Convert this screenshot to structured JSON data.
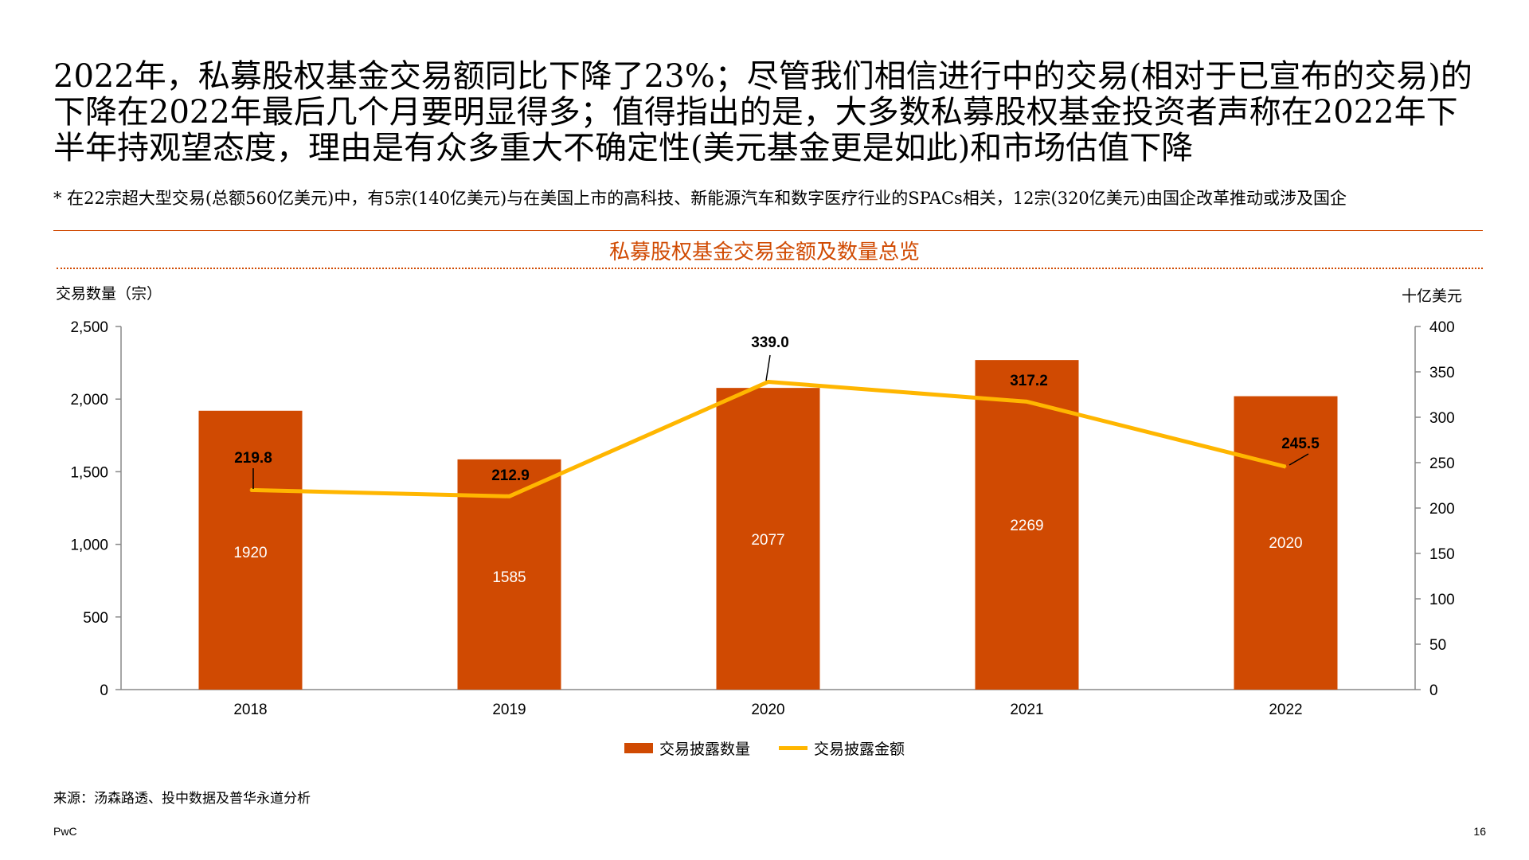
{
  "headline": "2022年，私募股权基金交易额同比下降了23%；尽管我们相信进行中的交易(相对于已宣布的交易)的下降在2022年最后几个月要明显得多；值得指出的是，大多数私募股权基金投资者声称在2022年下半年持观望态度，理由是有众多重大不确定性(美元基金更是如此)和市场估值下降",
  "footnote": "* 在22宗超大型交易(总额560亿美元)中，有5宗(140亿美元)与在美国上市的高科技、新能源汽车和数字医疗行业的SPACs相关，12宗(320亿美元)由国企改革推动或涉及国企",
  "source": "来源：汤森路透、投中数据及普华永道分析",
  "brand": "PwC",
  "page_number": "16",
  "colors": {
    "accent": "#d04a02",
    "bar": "#d04a02",
    "line": "#ffb600"
  },
  "chart_data": {
    "type": "bar",
    "title": "私募股权基金交易金额及数量总览",
    "categories": [
      "2018",
      "2019",
      "2020",
      "2021",
      "2022"
    ],
    "ylabel": "交易数量（宗）",
    "y2label": "十亿美元",
    "ylim": [
      0,
      2500
    ],
    "y2lim": [
      0,
      400
    ],
    "yticks": [
      "0",
      "500",
      "1,000",
      "1,500",
      "2,000",
      "2,500"
    ],
    "y2ticks": [
      "0",
      "50",
      "100",
      "150",
      "200",
      "250",
      "300",
      "350",
      "400"
    ],
    "grid": false,
    "legend_position": "bottom",
    "series": [
      {
        "name": "交易披露数量",
        "type": "bar",
        "axis": "left",
        "values": [
          1920,
          1585,
          2077,
          2269,
          2020
        ],
        "labels": [
          "1920",
          "1585",
          "2077",
          "2269",
          "2020"
        ]
      },
      {
        "name": "交易披露金额",
        "type": "line",
        "axis": "right",
        "values": [
          219.8,
          212.9,
          339.0,
          317.2,
          245.5
        ],
        "labels": [
          "219.8",
          "212.9",
          "339.0",
          "317.2",
          "245.5"
        ]
      }
    ]
  }
}
